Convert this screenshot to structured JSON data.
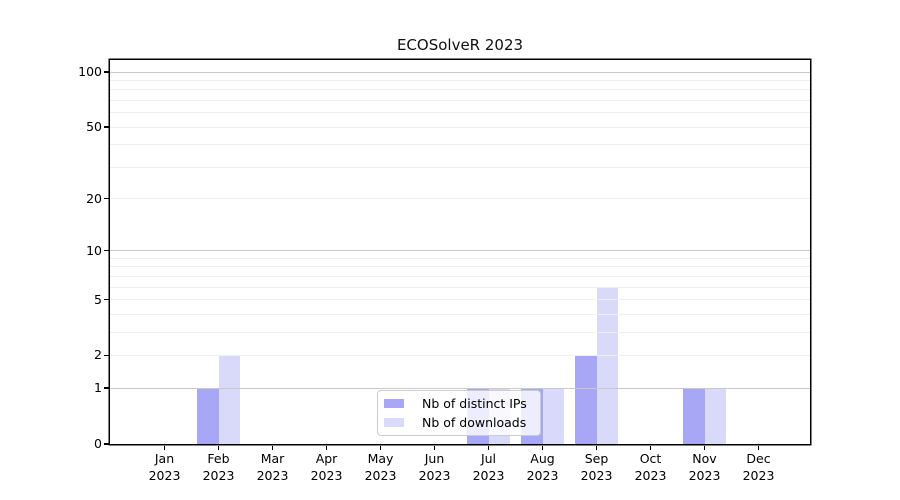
{
  "chart_data": {
    "type": "bar",
    "title": "ECOSolveR 2023",
    "xlabel": "",
    "ylabel": "",
    "year_label": "2023",
    "categories": [
      "Jan",
      "Feb",
      "Mar",
      "Apr",
      "May",
      "Jun",
      "Jul",
      "Aug",
      "Sep",
      "Oct",
      "Nov",
      "Dec"
    ],
    "series": [
      {
        "name": "Nb of distinct IPs",
        "color": "#a7a7f5",
        "values": [
          0,
          1,
          0,
          0,
          0,
          0,
          1,
          1,
          2,
          0,
          1,
          0
        ]
      },
      {
        "name": "Nb of downloads",
        "color": "#d9d9f9",
        "values": [
          0,
          2,
          0,
          0,
          0,
          0,
          1,
          1,
          6,
          0,
          1,
          0
        ]
      }
    ],
    "y_axis": {
      "scale": "log1p",
      "ticks": [
        0,
        1,
        2,
        5,
        10,
        20,
        50,
        100
      ],
      "tick_labels": [
        "0",
        "1",
        "2",
        "5",
        "10",
        "20",
        "50",
        "100"
      ],
      "range_max": 116
    },
    "gridlines": {
      "major": [
        1,
        10,
        100
      ],
      "minor": [
        2,
        3,
        4,
        5,
        6,
        7,
        8,
        9,
        20,
        30,
        40,
        50,
        60,
        70,
        80,
        90
      ]
    },
    "legend": {
      "position": "bottom-center"
    },
    "grid_on": true
  }
}
